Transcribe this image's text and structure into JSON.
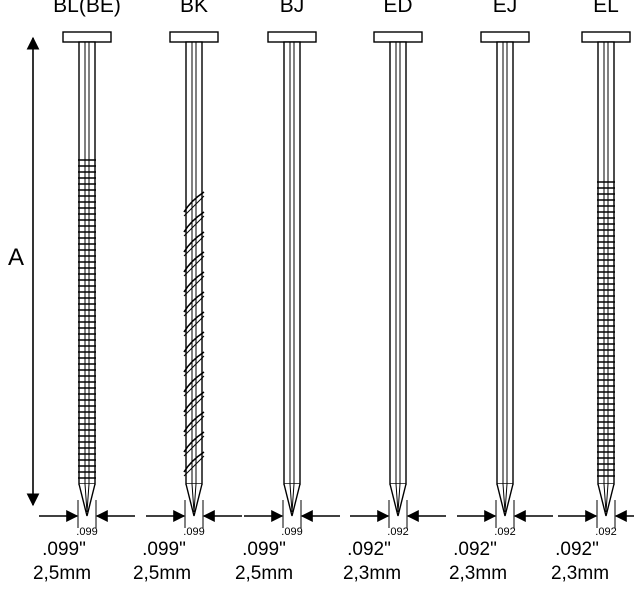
{
  "dimension_label": "A",
  "nails": [
    {
      "code": "BL(BE)",
      "shank": "ring",
      "dia_in": ".099\"",
      "dia_mm": "2,5mm",
      "cut_dia": ".099"
    },
    {
      "code": "BK",
      "shank": "screw",
      "dia_in": ".099\"",
      "dia_mm": "2,5mm",
      "cut_dia": ".099"
    },
    {
      "code": "BJ",
      "shank": "smooth",
      "dia_in": ".099\"",
      "dia_mm": "2,5mm",
      "cut_dia": ".099"
    },
    {
      "code": "ED",
      "shank": "smooth",
      "dia_in": ".092\"",
      "dia_mm": "2,3mm",
      "cut_dia": ".092"
    },
    {
      "code": "EJ",
      "shank": "smooth",
      "dia_in": ".092\"",
      "dia_mm": "2,3mm",
      "cut_dia": ".092"
    },
    {
      "code": "EL",
      "shank": "ring",
      "dia_in": ".092\"",
      "dia_mm": "2,3mm",
      "cut_dia": ".092"
    }
  ]
}
